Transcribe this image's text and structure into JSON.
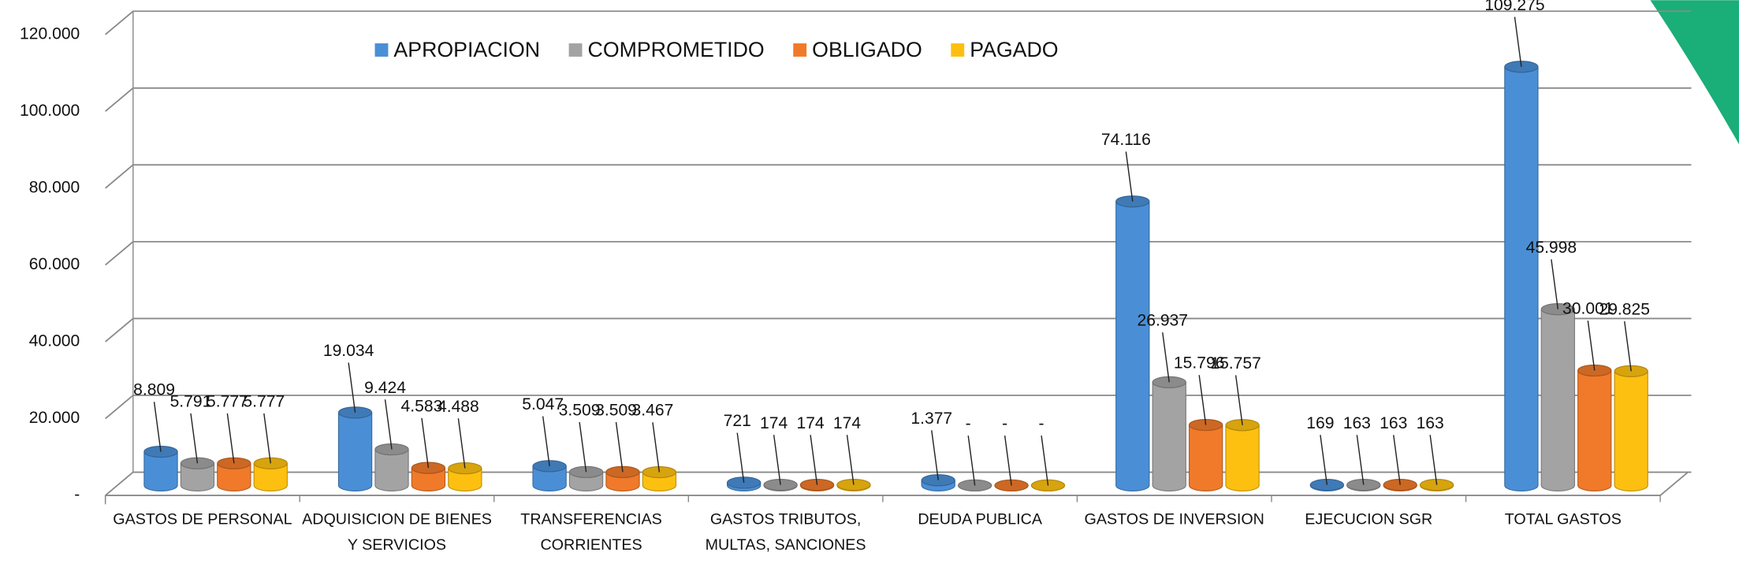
{
  "chart_data": {
    "type": "bar3d",
    "categories": [
      "GASTOS DE PERSONAL",
      "ADQUISICION DE BIENES Y SERVICIOS",
      "TRANSFERENCIAS CORRIENTES",
      "GASTOS TRIBUTOS, MULTAS, SANCIONES",
      "DEUDA PUBLICA",
      "GASTOS DE INVERSION",
      "EJECUCION SGR",
      "TOTAL GASTOS"
    ],
    "series": [
      {
        "name": "APROPIACION",
        "color": "#4a8fd6",
        "values": [
          8809,
          19034,
          5047,
          721,
          1377,
          74116,
          169,
          109275
        ],
        "value_labels": [
          "8.809",
          "19.034",
          "5.047",
          "721",
          "1.377",
          "74.116",
          "169",
          "109.275"
        ]
      },
      {
        "name": "COMPROMETIDO",
        "color": "#a3a3a3",
        "values": [
          5791,
          9424,
          3509,
          174,
          0,
          26937,
          163,
          45998
        ],
        "value_labels": [
          "5.791",
          "9.424",
          "3.509",
          "174",
          "-",
          "26.937",
          "163",
          "45.998"
        ]
      },
      {
        "name": "OBLIGADO",
        "color": "#f07a2a",
        "values": [
          5777,
          4583,
          3509,
          174,
          0,
          15796,
          163,
          30001
        ],
        "value_labels": [
          "5.777",
          "4.583",
          "3.509",
          "174",
          "-",
          "15.796",
          "163",
          "30.001"
        ]
      },
      {
        "name": "PAGADO",
        "color": "#fdc010",
        "values": [
          5777,
          4488,
          3467,
          174,
          0,
          15757,
          163,
          29825
        ],
        "value_labels": [
          "5.777",
          "4.488",
          "3.467",
          "174",
          "-",
          "15.757",
          "163",
          "29.825"
        ]
      }
    ],
    "ylim": [
      0,
      120000
    ],
    "yticks": [
      {
        "value": 0,
        "label": "-"
      },
      {
        "value": 20000,
        "label": "20.000"
      },
      {
        "value": 40000,
        "label": "40.000"
      },
      {
        "value": 60000,
        "label": "60.000"
      },
      {
        "value": 80000,
        "label": "80.000"
      },
      {
        "value": 100000,
        "label": "100.000"
      },
      {
        "value": 120000,
        "label": "120.000"
      }
    ],
    "grid": true,
    "legend": "top"
  }
}
